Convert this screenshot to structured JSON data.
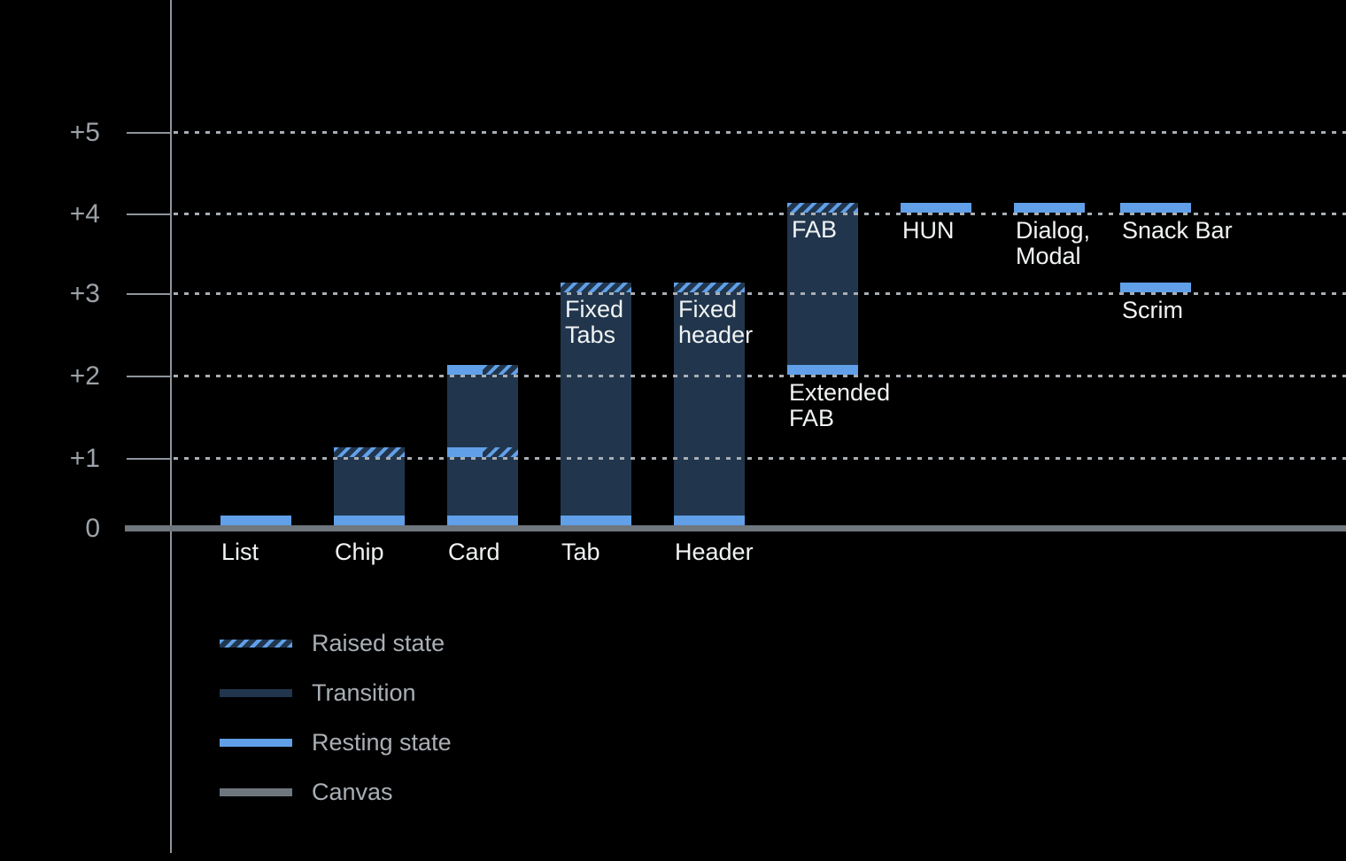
{
  "chart_data": {
    "type": "bar",
    "title": "",
    "subtitle": "",
    "description": "Elevation diagram of UI components on a black canvas, showing resting state, raised state and transition ranges between elevation levels 0 and +5",
    "y_axis": {
      "range": [
        0,
        5
      ],
      "grid": "dotted horizontal lines at each level",
      "ticks": [
        {
          "label": "+5",
          "level": 5
        },
        {
          "label": "+4",
          "level": 4
        },
        {
          "label": "+3",
          "level": 3
        },
        {
          "label": "+2",
          "level": 2
        },
        {
          "label": "+1",
          "level": 1
        },
        {
          "label": "0",
          "level": 0
        }
      ]
    },
    "components": [
      {
        "label": "List",
        "col": 0,
        "resting_level": 0,
        "raised_level": null,
        "transition": null,
        "bands": [
          {
            "level": 0,
            "kind": "resting"
          }
        ],
        "label_pos": "axis"
      },
      {
        "label": "Chip",
        "col": 1,
        "resting_level": 0,
        "raised_level": 1,
        "transition": {
          "from": 0,
          "to": 1
        },
        "bands": [
          {
            "level": 0,
            "kind": "resting"
          },
          {
            "level": 1,
            "kind": "raised"
          }
        ],
        "label_pos": "axis"
      },
      {
        "label": "Card",
        "col": 2,
        "resting_level": 0,
        "raised_level": 2,
        "transition": {
          "from": 0,
          "to": 2
        },
        "bands": [
          {
            "level": 0,
            "kind": "resting"
          },
          {
            "level": 1,
            "kind": "split"
          },
          {
            "level": 2,
            "kind": "split"
          }
        ],
        "label_pos": "axis"
      },
      {
        "label": "Tab",
        "col": 3,
        "resting_level": 0,
        "raised_level": 3,
        "transition": {
          "from": 0,
          "to": 3
        },
        "bands": [
          {
            "level": 0,
            "kind": "resting"
          },
          {
            "level": 3,
            "kind": "raised"
          }
        ],
        "label_pos": "axis",
        "inner_label": "Fixed\nTabs"
      },
      {
        "label": "Header",
        "col": 4,
        "resting_level": 0,
        "raised_level": 3,
        "transition": {
          "from": 0,
          "to": 3
        },
        "bands": [
          {
            "level": 0,
            "kind": "resting"
          },
          {
            "level": 3,
            "kind": "raised"
          }
        ],
        "label_pos": "axis",
        "inner_label": "Fixed\nheader"
      },
      {
        "label": "Extended\nFAB",
        "col": 5,
        "resting_level": 2,
        "raised_level": 4,
        "transition": {
          "from": 2,
          "to": 4
        },
        "bands": [
          {
            "level": 2,
            "kind": "resting"
          },
          {
            "level": 4,
            "kind": "raised"
          }
        ],
        "label_pos": "below-bar",
        "inner_label": "FAB"
      },
      {
        "label": "HUN",
        "col": 6,
        "resting_level": 4,
        "raised_level": null,
        "transition": null,
        "bands": [
          {
            "level": 4,
            "kind": "resting"
          }
        ],
        "label_pos": "below-bar"
      },
      {
        "label": "Dialog,\nModal",
        "col": 7,
        "resting_level": 4,
        "raised_level": null,
        "transition": null,
        "bands": [
          {
            "level": 4,
            "kind": "resting"
          }
        ],
        "label_pos": "below-bar"
      },
      {
        "label": "Snack Bar",
        "col": 8,
        "resting_level": 4,
        "raised_level": null,
        "transition": null,
        "bands": [
          {
            "level": 4,
            "kind": "resting"
          }
        ],
        "label_pos": "below-bar"
      },
      {
        "label": "Scrim",
        "col": 8,
        "resting_level": 3,
        "raised_level": null,
        "transition": null,
        "bands": [
          {
            "level": 3,
            "kind": "resting"
          }
        ],
        "label_pos": "below-bar"
      }
    ],
    "legend": [
      {
        "label": "Raised state",
        "swatch": "raised"
      },
      {
        "label": "Transition",
        "swatch": "transition"
      },
      {
        "label": "Resting state",
        "swatch": "resting"
      },
      {
        "label": "Canvas",
        "swatch": "canvas"
      }
    ],
    "legend_position": "bottom-left",
    "colors": {
      "background": "#000000",
      "resting": "#61A0E8",
      "transition": "#21364D",
      "hatch_stripe": "#61A0E8",
      "canvas": "#6F767E",
      "axis": "#8E959C",
      "grid_dots": "#A8AEB4",
      "tick_text": "#9CA2A8",
      "bar_label": "#F1F3F4",
      "legend_text": "#A9AFB5"
    }
  }
}
